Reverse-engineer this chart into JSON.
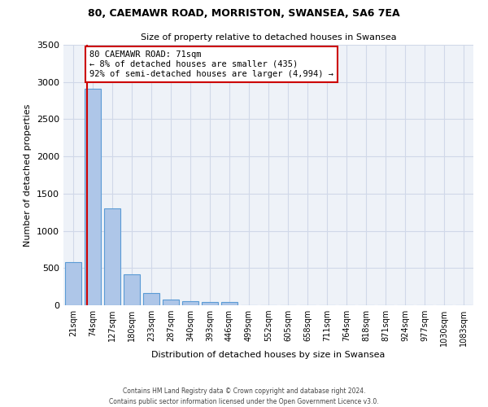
{
  "title_line1": "80, CAEMAWR ROAD, MORRISTON, SWANSEA, SA6 7EA",
  "title_line2": "Size of property relative to detached houses in Swansea",
  "xlabel": "Distribution of detached houses by size in Swansea",
  "ylabel": "Number of detached properties",
  "footnote": "Contains HM Land Registry data © Crown copyright and database right 2024.\nContains public sector information licensed under the Open Government Licence v3.0.",
  "bar_labels": [
    "21sqm",
    "74sqm",
    "127sqm",
    "180sqm",
    "233sqm",
    "287sqm",
    "340sqm",
    "393sqm",
    "446sqm",
    "499sqm",
    "552sqm",
    "605sqm",
    "658sqm",
    "711sqm",
    "764sqm",
    "818sqm",
    "871sqm",
    "924sqm",
    "977sqm",
    "1030sqm",
    "1083sqm"
  ],
  "bar_values": [
    580,
    2910,
    1300,
    420,
    160,
    80,
    50,
    45,
    40,
    0,
    0,
    0,
    0,
    0,
    0,
    0,
    0,
    0,
    0,
    0,
    0
  ],
  "bar_color": "#aec6e8",
  "bar_edge_color": "#5b9bd5",
  "grid_color": "#d0d8e8",
  "bg_color": "#eef2f8",
  "annotation_box_text": "80 CAEMAWR ROAD: 71sqm\n← 8% of detached houses are smaller (435)\n92% of semi-detached houses are larger (4,994) →",
  "annotation_box_color": "#cc0000",
  "annotation_box_bg": "#ffffff",
  "property_line_x": 0.72,
  "ylim": [
    0,
    3500
  ],
  "yticks": [
    0,
    500,
    1000,
    1500,
    2000,
    2500,
    3000,
    3500
  ]
}
